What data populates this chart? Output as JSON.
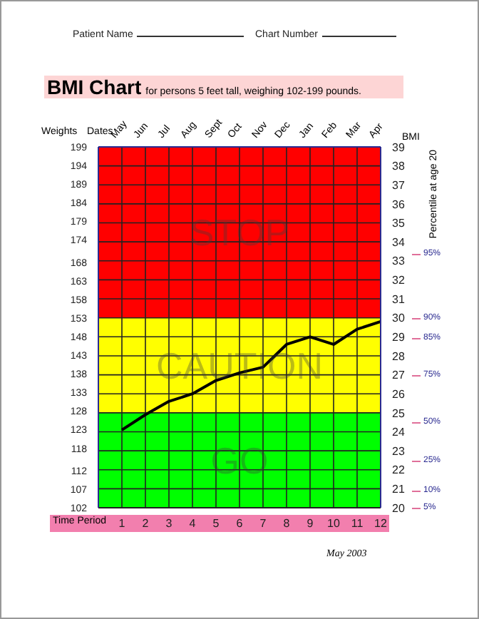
{
  "chart_data": {
    "type": "line",
    "title": "BMI Chart",
    "subtitle": "for persons 5 feet tall, weighing 102-199 pounds.",
    "annotations": [
      "Patient Name",
      "Chart Number",
      "May 2003",
      "Percentile at age 20",
      "May",
      "Jun",
      "Jul",
      "Aug",
      "Sept",
      "Oct",
      "Nov",
      "Dec",
      "Jan",
      "Feb",
      "Mar",
      "Apr",
      "95%",
      "90%",
      "85%",
      "75%",
      "50%",
      "25%",
      "10%",
      "5%"
    ],
    "xlabel": "Time Period",
    "x2label": "Dates",
    "ylabel": "Weights",
    "y2label": "BMI",
    "x": [
      1,
      2,
      3,
      4,
      5,
      6,
      7,
      8,
      9,
      10,
      11,
      12
    ],
    "xlim": [
      0,
      12
    ],
    "xticks": [
      1,
      2,
      3,
      4,
      5,
      6,
      7,
      8,
      9,
      10,
      11,
      12
    ],
    "ylim": [
      102,
      199
    ],
    "yticks": [
      102,
      107,
      112,
      118,
      123,
      128,
      133,
      138,
      143,
      148,
      153,
      158,
      163,
      168,
      174,
      179,
      184,
      189,
      194,
      199
    ],
    "y2lim": [
      20,
      39
    ],
    "y2ticks": [
      20,
      21,
      22,
      23,
      24,
      25,
      26,
      27,
      28,
      29,
      30,
      31,
      32,
      33,
      34,
      35,
      36,
      37,
      38,
      39
    ],
    "series": [
      {
        "color": "#000000",
        "axis": "y2",
        "values": [
          24.1,
          24.9,
          25.6,
          26,
          26.7,
          27.1,
          27.4,
          28.6,
          29,
          28.6,
          29.4,
          29.8
        ]
      }
    ],
    "bands": [
      {
        "axis": "y2",
        "from": 30,
        "to": 39,
        "label": "STOP",
        "color": "#ff0000"
      },
      {
        "axis": "y2",
        "from": 25,
        "to": 30,
        "label": "CAUTION",
        "color": "#ffff00"
      },
      {
        "axis": "y2",
        "from": 20,
        "to": 25,
        "label": "GO",
        "color": "#00ff00"
      }
    ],
    "grid": true,
    "marker": "none",
    "line_style": "solid"
  }
}
